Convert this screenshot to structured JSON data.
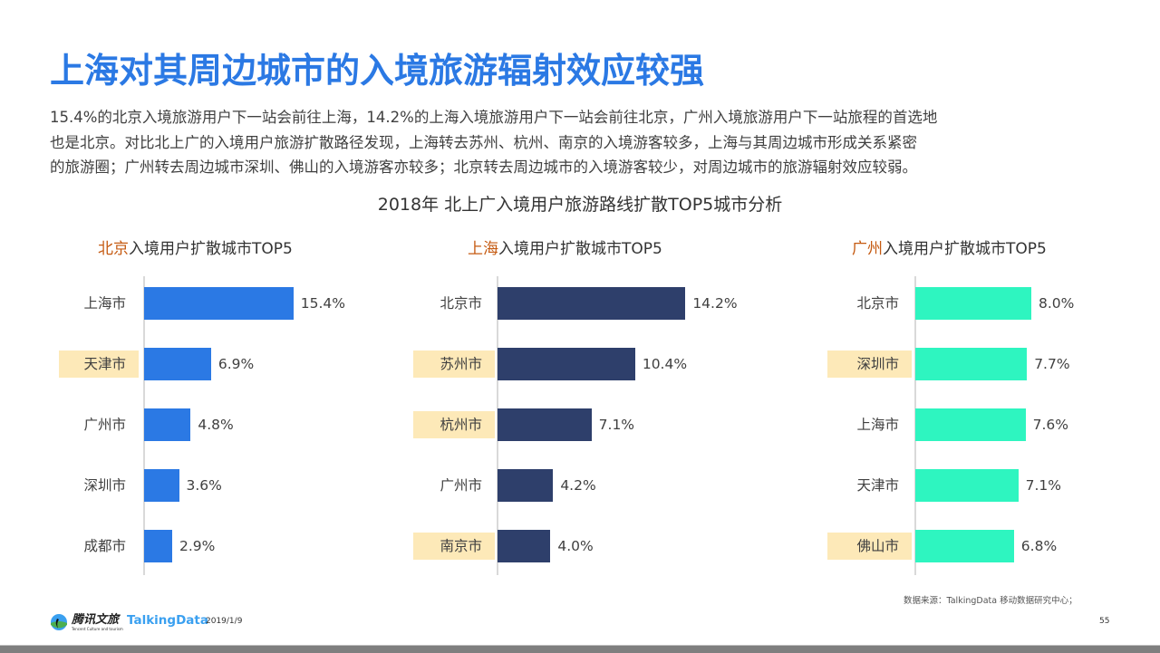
{
  "title": "上海对其周边城市的入境旅游辐射效应较强",
  "paragraph": [
    "15.4%的北京入境旅游用户下一站会前往上海，14.2%的上海入境旅游用户下一站会前往北京，广州入境旅游用户下一站旅程的首选地",
    "也是北京。对比北上广的入境用户旅游扩散路径发现，上海转去苏州、杭州、南京的入境游客较多，上海与其周边城市形成关系紧密",
    "的旅游圈；广州转去周边城市深圳、佛山的入境游客亦较多；北京转去周边城市的入境游客较少，对周边城市的旅游辐射效应较弱。"
  ],
  "colors": {
    "title": "#2b79e4",
    "highlight_text": "#c55a11",
    "highlight_bg": "#fde9b8",
    "beijing_bar": "#2b79e4",
    "shanghai_bar": "#2e3f6b",
    "guangzhou_bar": "#2ef5c0"
  },
  "chart_data": [
    {
      "type": "bar",
      "orientation": "horizontal",
      "title": "2018年 北上广入境用户旅游路线扩散TOP5城市分析",
      "subtitle_highlight": "北京",
      "subtitle_rest": "入境用户扩散城市TOP5",
      "categories": [
        "上海市",
        "天津市",
        "广州市",
        "深圳市",
        "成都市"
      ],
      "values": [
        15.4,
        6.9,
        4.8,
        3.6,
        2.9
      ],
      "labels": [
        "15.4%",
        "6.9%",
        "4.8%",
        "3.6%",
        "2.9%"
      ],
      "highlighted": [
        false,
        true,
        false,
        false,
        false
      ],
      "unit": "%",
      "color": "#2b79e4",
      "xlim": [
        0,
        16
      ]
    },
    {
      "type": "bar",
      "orientation": "horizontal",
      "subtitle_highlight": "上海",
      "subtitle_rest": "入境用户扩散城市TOP5",
      "categories": [
        "北京市",
        "苏州市",
        "杭州市",
        "广州市",
        "南京市"
      ],
      "values": [
        14.2,
        10.4,
        7.1,
        4.2,
        4.0
      ],
      "labels": [
        "14.2%",
        "10.4%",
        "7.1%",
        "4.2%",
        "4.0%"
      ],
      "highlighted": [
        false,
        true,
        true,
        false,
        true
      ],
      "unit": "%",
      "color": "#2e3f6b",
      "xlim": [
        0,
        16
      ]
    },
    {
      "type": "bar",
      "orientation": "horizontal",
      "subtitle_highlight": "广州",
      "subtitle_rest": "入境用户扩散城市TOP5",
      "categories": [
        "北京市",
        "深圳市",
        "上海市",
        "天津市",
        "佛山市"
      ],
      "values": [
        8.0,
        7.7,
        7.6,
        7.1,
        6.8
      ],
      "labels": [
        "8.0%",
        "7.7%",
        "7.6%",
        "7.1%",
        "6.8%"
      ],
      "highlighted": [
        false,
        true,
        false,
        false,
        true
      ],
      "unit": "%",
      "color": "#2ef5c0",
      "xlim": [
        0,
        9
      ]
    }
  ],
  "main_chart_title": "2018年 北上广入境用户旅游路线扩散TOP5城市分析",
  "footer": {
    "logo_tencent": "腾讯文旅",
    "logo_tencent_sub": "Tencent Culture and tourism",
    "logo_talkingdata": "TalkingData",
    "date": "2019/1/9",
    "source": "数据来源：TalkingData  移动数据研究中心；",
    "page_number": "55"
  }
}
